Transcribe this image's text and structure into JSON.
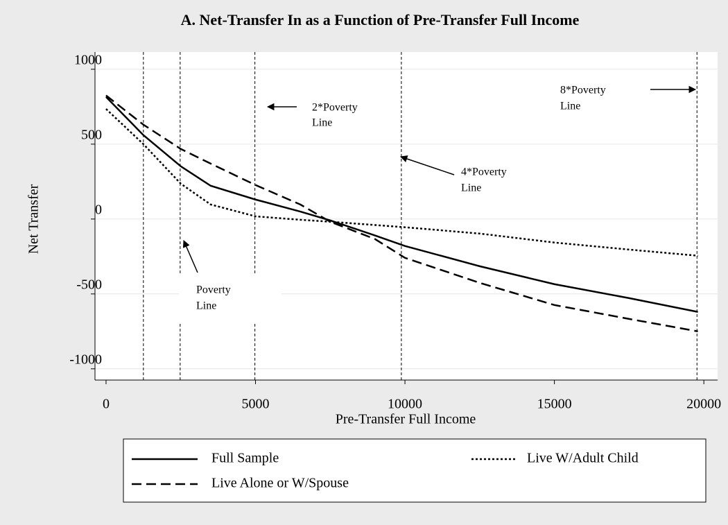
{
  "chart_data": {
    "type": "line",
    "title": "A. Net-Transfer In as a Function of Pre-Transfer Full Income",
    "x_label": "Pre-Transfer Full Income",
    "y_label": "Net Transfer",
    "xlim": [
      -370,
      20460
    ],
    "ylim": [
      -1075,
      1115
    ],
    "xticks": [
      0,
      5000,
      10000,
      15000,
      20000
    ],
    "yticks": [
      -1000,
      -500,
      0,
      500,
      1000
    ],
    "grid": true,
    "reference_lines": [
      1250,
      2480,
      4980,
      9880,
      19770
    ],
    "x": [
      0,
      1250,
      2500,
      3500,
      5000,
      6500,
      7500,
      9000,
      10000,
      12500,
      15000,
      17500,
      19800
    ],
    "series": [
      {
        "name": "Full Sample",
        "color": "#000000",
        "dash": "solid",
        "values": [
          815,
          560,
          352,
          222,
          130,
          50,
          -9,
          -110,
          -180,
          -315,
          -435,
          -528,
          -620
        ]
      },
      {
        "name": "Live W/Adult Child",
        "color": "#000000",
        "dash": "dotted",
        "values": [
          735,
          500,
          236,
          97,
          18,
          -5,
          -18,
          -40,
          -55,
          -97,
          -157,
          -204,
          -245
        ]
      },
      {
        "name": "Live Alone or W/Spouse",
        "color": "#000000",
        "dash": "dashed",
        "values": [
          825,
          630,
          468,
          370,
          227,
          97,
          -18,
          -134,
          -259,
          -426,
          -574,
          -667,
          -750
        ]
      }
    ],
    "annotations": [
      {
        "lines": [
          "2*Poverty",
          "Line"
        ]
      },
      {
        "lines": [
          "4*Poverty",
          "Line"
        ]
      },
      {
        "lines": [
          "8*Poverty",
          "Line"
        ]
      },
      {
        "lines": [
          "Poverty",
          "Line"
        ]
      }
    ]
  }
}
